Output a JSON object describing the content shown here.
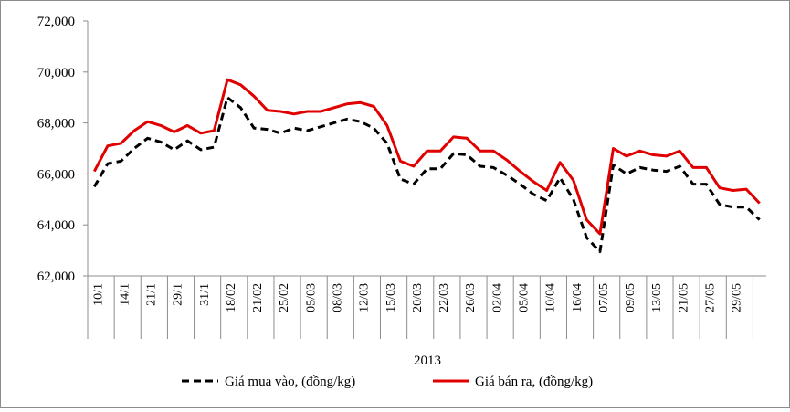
{
  "chart_data": {
    "type": "line",
    "title": "",
    "xlabel": "2013",
    "ylabel": "",
    "ylim": [
      62000,
      72000
    ],
    "yticks": [
      62000,
      64000,
      66000,
      68000,
      70000,
      72000
    ],
    "ytick_labels": [
      "62,000",
      "64,000",
      "66,000",
      "68,000",
      "70,000",
      "72,000"
    ],
    "grid": false,
    "legend_position": "bottom",
    "x_tick_labels": [
      "10/1",
      "14/1",
      "21/1",
      "29/1",
      "31/1",
      "18/02",
      "21/02",
      "25/02",
      "05/03",
      "08/03",
      "12/03",
      "15/03",
      "20/03",
      "22/03",
      "26/03",
      "02/04",
      "05/04",
      "10/04",
      "16/04",
      "07/05",
      "09/05",
      "13/05",
      "21/05",
      "27/05",
      "29/05"
    ],
    "series": [
      {
        "name": "Giá mua vào, (đồng/kg)",
        "color": "#000000",
        "dash": "dashed",
        "values": [
          65500,
          66400,
          66500,
          67000,
          67400,
          67250,
          66950,
          67300,
          66950,
          67050,
          69000,
          68600,
          67800,
          67750,
          67600,
          67800,
          67700,
          67850,
          68000,
          68150,
          68050,
          67800,
          67200,
          65800,
          65600,
          66200,
          66200,
          66800,
          66750,
          66300,
          66250,
          65950,
          65600,
          65200,
          64950,
          65850,
          65000,
          63500,
          62950,
          66350,
          66000,
          66250,
          66150,
          66100,
          66300,
          65600,
          65600,
          64800,
          64700,
          64700,
          64200
        ]
      },
      {
        "name": "Giá bán ra, (đồng/kg)",
        "color": "#e00000",
        "dash": "solid",
        "values": [
          66100,
          67100,
          67200,
          67700,
          68050,
          67900,
          67650,
          67900,
          67600,
          67700,
          69700,
          69500,
          69050,
          68500,
          68450,
          68350,
          68450,
          68450,
          68600,
          68750,
          68800,
          68650,
          67900,
          66500,
          66300,
          66900,
          66900,
          67450,
          67400,
          66900,
          66900,
          66550,
          66100,
          65700,
          65350,
          66450,
          65750,
          64200,
          63650,
          67000,
          66700,
          66900,
          66750,
          66700,
          66900,
          66250,
          66250,
          65450,
          65350,
          65400,
          64850
        ]
      }
    ]
  }
}
